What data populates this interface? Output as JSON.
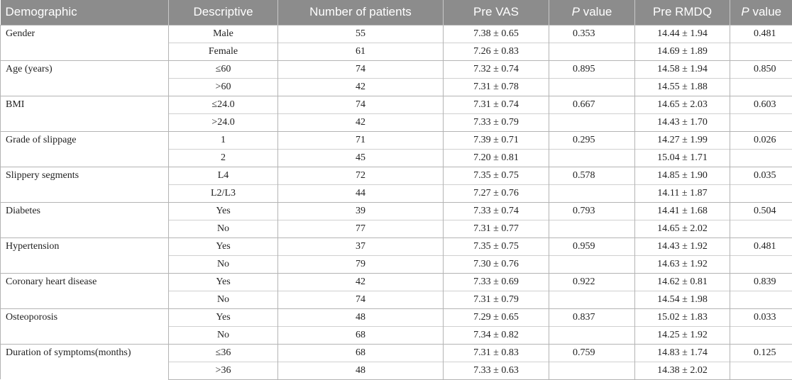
{
  "headers": [
    "Demographic",
    "Descriptive",
    "Number of patients",
    "Pre VAS",
    "P value",
    "Pre RMDQ",
    "P value"
  ],
  "header_italic_p": "P",
  "header_p_suffix": " value",
  "groups": [
    {
      "demographic": "Gender",
      "rows": [
        {
          "descriptive": "Male",
          "n": "55",
          "vas": "7.38 ± 0.65",
          "p_vas": "0.353",
          "rmdq": "14.44 ± 1.94",
          "p_rmdq": "0.481"
        },
        {
          "descriptive": "Female",
          "n": "61",
          "vas": "7.26 ± 0.83",
          "p_vas": "",
          "rmdq": "14.69 ± 1.89",
          "p_rmdq": ""
        }
      ]
    },
    {
      "demographic": "Age (years)",
      "rows": [
        {
          "descriptive": "≤60",
          "n": "74",
          "vas": "7.32 ± 0.74",
          "p_vas": "0.895",
          "rmdq": "14.58 ± 1.94",
          "p_rmdq": "0.850"
        },
        {
          "descriptive": ">60",
          "n": "42",
          "vas": "7.31 ± 0.78",
          "p_vas": "",
          "rmdq": "14.55 ± 1.88",
          "p_rmdq": ""
        }
      ]
    },
    {
      "demographic": "BMI",
      "rows": [
        {
          "descriptive": "≤24.0",
          "n": "74",
          "vas": "7.31 ± 0.74",
          "p_vas": "0.667",
          "rmdq": "14.65 ± 2.03",
          "p_rmdq": "0.603"
        },
        {
          "descriptive": ">24.0",
          "n": "42",
          "vas": "7.33 ± 0.79",
          "p_vas": "",
          "rmdq": "14.43 ± 1.70",
          "p_rmdq": ""
        }
      ]
    },
    {
      "demographic": "Grade of slippage",
      "rows": [
        {
          "descriptive": "1",
          "n": "71",
          "vas": "7.39 ± 0.71",
          "p_vas": "0.295",
          "rmdq": "14.27 ± 1.99",
          "p_rmdq": "0.026"
        },
        {
          "descriptive": "2",
          "n": "45",
          "vas": "7.20 ± 0.81",
          "p_vas": "",
          "rmdq": "15.04 ± 1.71",
          "p_rmdq": ""
        }
      ]
    },
    {
      "demographic": "Slippery segments",
      "rows": [
        {
          "descriptive": "L4",
          "n": "72",
          "vas": "7.35 ± 0.75",
          "p_vas": "0.578",
          "rmdq": "14.85 ± 1.90",
          "p_rmdq": "0.035"
        },
        {
          "descriptive": "L2/L3",
          "n": "44",
          "vas": "7.27 ± 0.76",
          "p_vas": "",
          "rmdq": "14.11 ± 1.87",
          "p_rmdq": ""
        }
      ]
    },
    {
      "demographic": "Diabetes",
      "rows": [
        {
          "descriptive": "Yes",
          "n": "39",
          "vas": "7.33 ± 0.74",
          "p_vas": "0.793",
          "rmdq": "14.41 ± 1.68",
          "p_rmdq": "0.504"
        },
        {
          "descriptive": "No",
          "n": "77",
          "vas": "7.31 ± 0.77",
          "p_vas": "",
          "rmdq": "14.65 ± 2.02",
          "p_rmdq": ""
        }
      ]
    },
    {
      "demographic": "Hypertension",
      "rows": [
        {
          "descriptive": "Yes",
          "n": "37",
          "vas": "7.35 ± 0.75",
          "p_vas": "0.959",
          "rmdq": "14.43 ± 1.92",
          "p_rmdq": "0.481"
        },
        {
          "descriptive": "No",
          "n": "79",
          "vas": "7.30 ± 0.76",
          "p_vas": "",
          "rmdq": "14.63 ± 1.92",
          "p_rmdq": ""
        }
      ]
    },
    {
      "demographic": "Coronary heart disease",
      "rows": [
        {
          "descriptive": "Yes",
          "n": "42",
          "vas": "7.33 ± 0.69",
          "p_vas": "0.922",
          "rmdq": "14.62 ± 0.81",
          "p_rmdq": "0.839"
        },
        {
          "descriptive": "No",
          "n": "74",
          "vas": "7.31 ± 0.79",
          "p_vas": "",
          "rmdq": "14.54 ± 1.98",
          "p_rmdq": ""
        }
      ]
    },
    {
      "demographic": "Osteoporosis",
      "rows": [
        {
          "descriptive": "Yes",
          "n": "48",
          "vas": "7.29 ± 0.65",
          "p_vas": "0.837",
          "rmdq": "15.02 ± 1.83",
          "p_rmdq": "0.033"
        },
        {
          "descriptive": "No",
          "n": "68",
          "vas": "7.34 ± 0.82",
          "p_vas": "",
          "rmdq": "14.25 ± 1.92",
          "p_rmdq": ""
        }
      ]
    },
    {
      "demographic": "Duration of symptoms(months)",
      "rows": [
        {
          "descriptive": "≤36",
          "n": "68",
          "vas": "7.31 ± 0.83",
          "p_vas": "0.759",
          "rmdq": "14.83 ± 1.74",
          "p_rmdq": "0.125"
        },
        {
          "descriptive": ">36",
          "n": "48",
          "vas": "7.33 ± 0.63",
          "p_vas": "",
          "rmdq": "14.38 ± 2.02",
          "p_rmdq": ""
        }
      ]
    }
  ]
}
